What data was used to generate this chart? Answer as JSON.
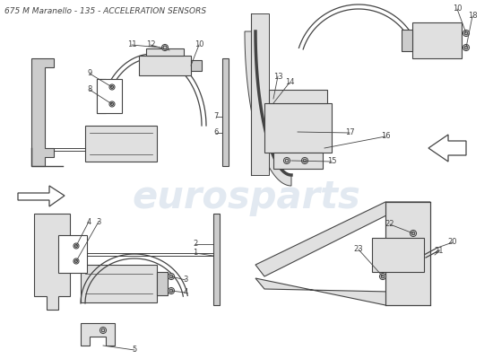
{
  "title": "675 M Maranello - 135 - ACCELERATION SENSORS",
  "title_fontsize": 6.5,
  "background_color": "#ffffff",
  "watermark_text": "eurosparts",
  "watermark_color": "#c0cfe0",
  "watermark_alpha": 0.45,
  "line_color": "#444444",
  "line_width": 0.8,
  "label_fontsize": 6,
  "fill_light": "#e0e0e0",
  "fill_mid": "#cccccc",
  "fill_white": "#ffffff"
}
